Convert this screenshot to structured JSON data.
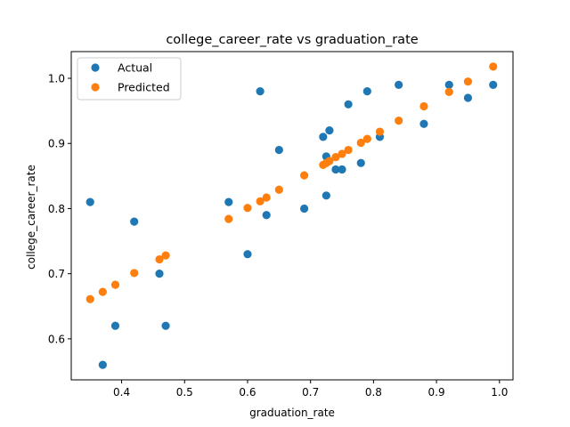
{
  "chart_data": {
    "type": "scatter",
    "title": "college_career_rate vs graduation_rate",
    "xlabel": "graduation_rate",
    "ylabel": "college_career_rate",
    "xlim": [
      0.32,
      1.0215
    ],
    "ylim": [
      0.537,
      1.041
    ],
    "xticks": [
      0.4,
      0.5,
      0.6,
      0.7,
      0.8,
      0.9,
      1.0
    ],
    "xtick_labels": [
      "0.4",
      "0.5",
      "0.6",
      "0.7",
      "0.8",
      "0.9",
      "1.0"
    ],
    "yticks": [
      0.6,
      0.7,
      0.8,
      0.9,
      1.0
    ],
    "ytick_labels": [
      "0.6",
      "0.7",
      "0.8",
      "0.9",
      "1.0"
    ],
    "grid": false,
    "legend_position": "top-left",
    "series": [
      {
        "name": "Actual",
        "color": "#1f77b4",
        "points": [
          [
            0.35,
            0.81
          ],
          [
            0.37,
            0.56
          ],
          [
            0.39,
            0.62
          ],
          [
            0.42,
            0.78
          ],
          [
            0.46,
            0.7
          ],
          [
            0.47,
            0.62
          ],
          [
            0.57,
            0.81
          ],
          [
            0.6,
            0.73
          ],
          [
            0.62,
            0.98
          ],
          [
            0.63,
            0.79
          ],
          [
            0.65,
            0.89
          ],
          [
            0.69,
            0.8
          ],
          [
            0.72,
            0.91
          ],
          [
            0.725,
            0.88
          ],
          [
            0.725,
            0.82
          ],
          [
            0.73,
            0.92
          ],
          [
            0.74,
            0.86
          ],
          [
            0.75,
            0.86
          ],
          [
            0.76,
            0.96
          ],
          [
            0.78,
            0.87
          ],
          [
            0.79,
            0.98
          ],
          [
            0.81,
            0.91
          ],
          [
            0.84,
            0.99
          ],
          [
            0.88,
            0.93
          ],
          [
            0.92,
            0.99
          ],
          [
            0.95,
            0.97
          ],
          [
            0.99,
            0.99
          ]
        ]
      },
      {
        "name": "Predicted",
        "color": "#ff7f0e",
        "points": [
          [
            0.35,
            0.661
          ],
          [
            0.37,
            0.672
          ],
          [
            0.39,
            0.683
          ],
          [
            0.42,
            0.701
          ],
          [
            0.46,
            0.722
          ],
          [
            0.47,
            0.728
          ],
          [
            0.57,
            0.784
          ],
          [
            0.6,
            0.801
          ],
          [
            0.62,
            0.811
          ],
          [
            0.63,
            0.817
          ],
          [
            0.65,
            0.829
          ],
          [
            0.69,
            0.851
          ],
          [
            0.72,
            0.867
          ],
          [
            0.725,
            0.87
          ],
          [
            0.73,
            0.873
          ],
          [
            0.74,
            0.879
          ],
          [
            0.75,
            0.884
          ],
          [
            0.76,
            0.89
          ],
          [
            0.78,
            0.901
          ],
          [
            0.79,
            0.907
          ],
          [
            0.81,
            0.918
          ],
          [
            0.84,
            0.935
          ],
          [
            0.88,
            0.957
          ],
          [
            0.92,
            0.979
          ],
          [
            0.95,
            0.995
          ],
          [
            0.99,
            1.018
          ]
        ]
      }
    ]
  }
}
